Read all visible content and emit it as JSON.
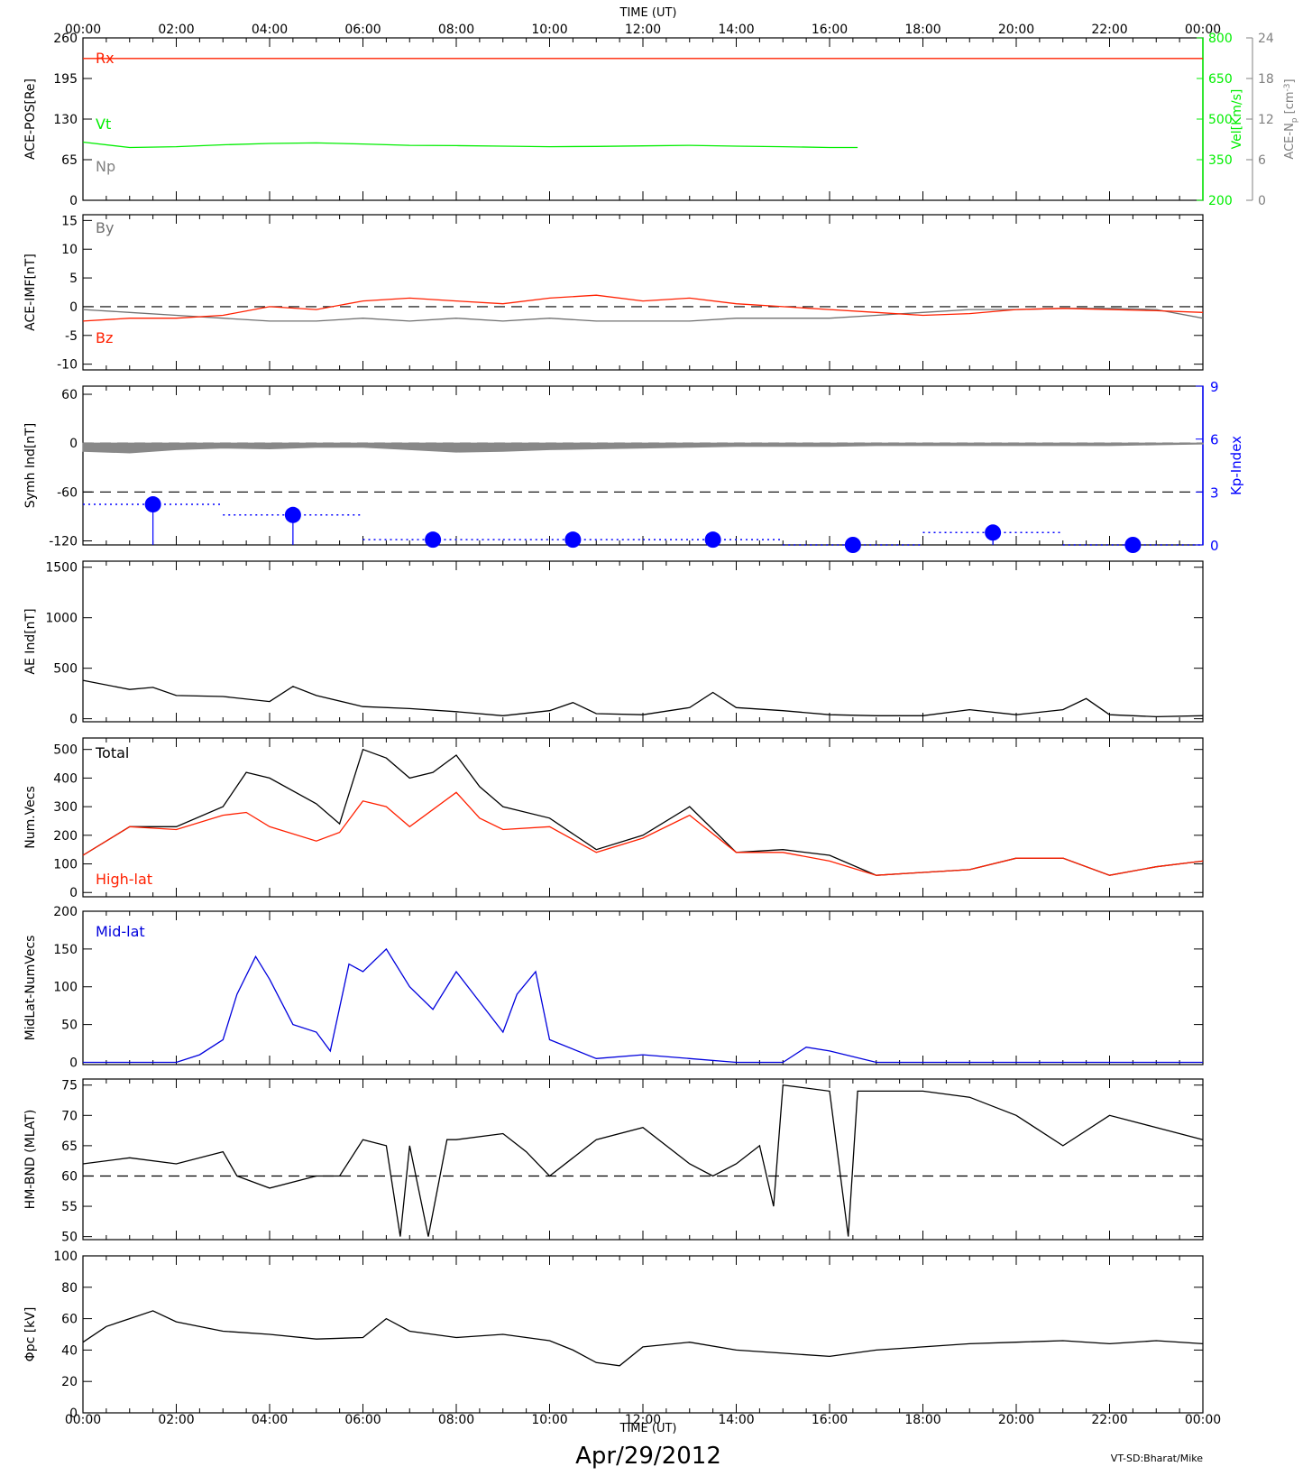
{
  "figure": {
    "top_axis_title": "TIME (UT)",
    "bottom_axis_title": "TIME (UT)",
    "date_label": "Apr/29/2012",
    "credit": "VT-SD:Bharat/Mike",
    "time_ticks": [
      "00:00",
      "02:00",
      "04:00",
      "06:00",
      "08:00",
      "10:00",
      "12:00",
      "14:00",
      "16:00",
      "18:00",
      "20:00",
      "22:00",
      "00:00"
    ]
  },
  "colors": {
    "axis": "#000000",
    "rx": "#ff2000",
    "vt": "#00ee00",
    "np": "#808080",
    "by": "#707070",
    "bz": "#ff2000",
    "symh_fill": "#888888",
    "kp": "#0000ff",
    "total": "#000000",
    "highlat": "#ff2000",
    "midlat": "#0000dd"
  },
  "chart_data": [
    {
      "type": "line",
      "ylabel": "ACE-POS[Re]",
      "ylim": [
        0,
        260
      ],
      "yticks": [
        0,
        65,
        130,
        195,
        260
      ],
      "right_axes": [
        {
          "label": "Vel[Km/s]",
          "ylim": [
            200,
            800
          ],
          "yticks": [
            200,
            350,
            500,
            650,
            800
          ],
          "color": "#00ee00"
        },
        {
          "label": "ACE-N",
          "label_sub": "p",
          "label_unit": "[cm",
          "label_unit_sup": "-3",
          "label_close": "]",
          "ylim": [
            0,
            24
          ],
          "yticks": [
            0,
            6,
            12,
            18,
            24
          ],
          "color": "#808080"
        }
      ],
      "series": [
        {
          "name": "Rx",
          "color": "#ff2000",
          "x": [
            0,
            24
          ],
          "y": [
            227,
            227
          ]
        },
        {
          "name": "Vt",
          "color": "#00ee00",
          "axis": "right",
          "x": [
            0,
            1,
            2,
            3,
            4,
            5,
            6,
            7,
            8,
            9,
            10,
            11,
            12,
            13,
            14,
            15,
            16,
            16.6
          ],
          "y": [
            415,
            395,
            398,
            405,
            410,
            412,
            408,
            403,
            402,
            400,
            398,
            399,
            401,
            403,
            400,
            398,
            395,
            395
          ]
        },
        {
          "name": "Np",
          "color": "#808080",
          "x": [],
          "y": []
        }
      ]
    },
    {
      "type": "line",
      "ylabel": "ACE-IMF[nT]",
      "ylim": [
        -11,
        16
      ],
      "yticks": [
        -10,
        -5,
        0,
        5,
        10,
        15
      ],
      "refline": 0,
      "series": [
        {
          "name": "By",
          "color": "#707070",
          "x": [
            0,
            1,
            2,
            3,
            4,
            5,
            6,
            7,
            8,
            9,
            10,
            11,
            12,
            13,
            14,
            15,
            16,
            17,
            18,
            19,
            20,
            21,
            22,
            23,
            24
          ],
          "y": [
            -0.5,
            -1,
            -1.5,
            -2,
            -2.5,
            -2.5,
            -2,
            -2.5,
            -2,
            -2.5,
            -2,
            -2.5,
            -2.5,
            -2.5,
            -2,
            -2,
            -2,
            -1.5,
            -1,
            -0.5,
            -0.5,
            -0.3,
            -0.3,
            -0.5,
            -2
          ]
        },
        {
          "name": "Bz",
          "color": "#ff2000",
          "x": [
            0,
            1,
            2,
            3,
            4,
            5,
            6,
            7,
            8,
            9,
            10,
            11,
            12,
            13,
            14,
            15,
            16,
            17,
            18,
            19,
            20,
            21,
            22,
            23,
            24
          ],
          "y": [
            -2.5,
            -2,
            -2,
            -1.5,
            0,
            -0.5,
            1,
            1.5,
            1,
            0.5,
            1.5,
            2,
            1,
            1.5,
            0.5,
            0,
            -0.5,
            -1,
            -1.5,
            -1.2,
            -0.5,
            -0.3,
            -0.5,
            -0.7,
            -1
          ]
        }
      ]
    },
    {
      "type": "area",
      "ylabel": "Symh Ind[nT]",
      "ylim": [
        -125,
        70
      ],
      "yticks": [
        -120,
        -60,
        0,
        60
      ],
      "reflines": [
        0,
        -60
      ],
      "right_axis": {
        "label": "Kp-Index",
        "ylim": [
          0,
          9
        ],
        "yticks": [
          0,
          3,
          6,
          9
        ],
        "color": "#0000ff"
      },
      "series": [
        {
          "name": "SYM-H",
          "color": "#888888",
          "x": [
            0,
            1,
            2,
            3,
            4,
            5,
            6,
            7,
            8,
            9,
            10,
            11,
            12,
            13,
            14,
            15,
            16,
            17,
            18,
            19,
            20,
            21,
            22,
            23,
            24
          ],
          "y": [
            -10,
            -12,
            -8,
            -6,
            -7,
            -5,
            -5,
            -8,
            -11,
            -10,
            -8,
            -7,
            -6,
            -5,
            -4,
            -4,
            -4,
            -3,
            -3,
            -3,
            -3,
            -3,
            -3,
            -2,
            -1
          ]
        },
        {
          "name": "Kp",
          "color": "#0000ff",
          "axis": "right",
          "x": [
            1.5,
            4.5,
            7.5,
            10.5,
            13.5,
            16.5,
            19.5,
            22.5
          ],
          "y": [
            2.3,
            1.7,
            0.3,
            0.3,
            0.3,
            0,
            0.7,
            0
          ]
        }
      ]
    },
    {
      "type": "line",
      "ylabel": "AE Ind[nT]",
      "ylim": [
        -30,
        1560
      ],
      "yticks": [
        0,
        500,
        1000,
        1500
      ],
      "series": [
        {
          "name": "AE",
          "color": "#000000",
          "x": [
            0,
            1,
            1.5,
            2,
            3,
            4,
            4.5,
            5,
            6,
            7,
            8,
            9,
            10,
            10.5,
            11,
            12,
            13,
            13.5,
            14,
            15,
            16,
            17,
            18,
            19,
            20,
            21,
            21.5,
            22,
            23,
            24
          ],
          "y": [
            380,
            290,
            310,
            230,
            220,
            170,
            320,
            230,
            120,
            100,
            70,
            30,
            80,
            160,
            50,
            40,
            110,
            260,
            110,
            80,
            40,
            30,
            30,
            90,
            40,
            90,
            200,
            40,
            20,
            30
          ]
        }
      ]
    },
    {
      "type": "line",
      "ylabel": "Num.Vecs",
      "ylim": [
        -15,
        540
      ],
      "yticks": [
        0,
        100,
        200,
        300,
        400,
        500
      ],
      "series": [
        {
          "name": "Total",
          "color": "#000000",
          "x": [
            0,
            1,
            2,
            3,
            3.5,
            4,
            5,
            5.5,
            6,
            6.5,
            7,
            7.5,
            8,
            8.5,
            9,
            10,
            11,
            12,
            13,
            14,
            15,
            16,
            17,
            18,
            19,
            20,
            21,
            22,
            23,
            24
          ],
          "y": [
            130,
            230,
            230,
            300,
            420,
            400,
            310,
            240,
            500,
            470,
            400,
            420,
            480,
            370,
            300,
            260,
            150,
            200,
            300,
            140,
            150,
            130,
            60,
            70,
            80,
            120,
            120,
            60,
            90,
            110
          ]
        },
        {
          "name": "High-lat",
          "color": "#ff2000",
          "x": [
            0,
            1,
            2,
            3,
            3.5,
            4,
            5,
            5.5,
            6,
            6.5,
            7,
            7.5,
            8,
            8.5,
            9,
            10,
            11,
            12,
            13,
            14,
            15,
            16,
            17,
            18,
            19,
            20,
            21,
            22,
            23,
            24
          ],
          "y": [
            130,
            230,
            220,
            270,
            280,
            230,
            180,
            210,
            320,
            300,
            230,
            290,
            350,
            260,
            220,
            230,
            140,
            190,
            270,
            140,
            140,
            110,
            60,
            70,
            80,
            120,
            120,
            60,
            90,
            110
          ]
        }
      ]
    },
    {
      "type": "line",
      "ylabel": "MidLat-NumVecs",
      "ylim": [
        -3,
        200
      ],
      "yticks": [
        0,
        50,
        100,
        150,
        200
      ],
      "series": [
        {
          "name": "Mid-lat",
          "color": "#0000dd",
          "x": [
            0,
            1,
            2,
            2.5,
            3,
            3.3,
            3.7,
            4,
            4.5,
            5,
            5.3,
            5.7,
            6,
            6.5,
            7,
            7.5,
            8,
            8.5,
            9,
            9.3,
            9.7,
            10,
            11,
            12,
            13,
            14,
            15,
            15.5,
            16,
            17,
            18,
            19,
            20,
            21,
            22,
            23,
            24
          ],
          "y": [
            0,
            0,
            0,
            10,
            30,
            90,
            140,
            110,
            50,
            40,
            15,
            130,
            120,
            150,
            100,
            70,
            120,
            80,
            40,
            90,
            120,
            30,
            5,
            10,
            5,
            0,
            0,
            20,
            15,
            0,
            0,
            0,
            0,
            0,
            0,
            0,
            0
          ]
        }
      ]
    },
    {
      "type": "line",
      "ylabel": "HM-BND (MLAT)",
      "ylim": [
        49.5,
        76
      ],
      "yticks": [
        50,
        55,
        60,
        65,
        70,
        75
      ],
      "refline": 60,
      "series": [
        {
          "name": "HM-BND",
          "color": "#000000",
          "x": [
            0,
            1,
            2,
            3,
            3.3,
            4,
            5,
            5.5,
            6,
            6.5,
            6.8,
            7,
            7.4,
            7.8,
            8,
            9,
            9.5,
            10,
            11,
            12,
            13,
            13.5,
            14,
            14.5,
            14.8,
            15,
            16,
            16.4,
            16.6,
            17,
            18,
            19,
            20,
            21,
            22,
            23,
            24
          ],
          "y": [
            62,
            63,
            62,
            64,
            60,
            58,
            60,
            60,
            66,
            65,
            50,
            65,
            50,
            66,
            66,
            67,
            64,
            60,
            66,
            68,
            62,
            60,
            62,
            65,
            55,
            75,
            74,
            50,
            74,
            74,
            74,
            73,
            70,
            65,
            70,
            68,
            66
          ]
        }
      ]
    },
    {
      "type": "line",
      "ylabel": "Φpc [kV]",
      "ylim": [
        0,
        100
      ],
      "yticks": [
        0,
        20,
        40,
        60,
        80,
        100
      ],
      "series": [
        {
          "name": "Phi_pc",
          "color": "#000000",
          "x": [
            0,
            0.5,
            1,
            1.5,
            2,
            3,
            4,
            5,
            6,
            6.5,
            7,
            8,
            9,
            10,
            10.5,
            11,
            11.5,
            12,
            13,
            14,
            15,
            16,
            17,
            18,
            19,
            20,
            21,
            22,
            23,
            24
          ],
          "y": [
            45,
            55,
            60,
            65,
            58,
            52,
            50,
            47,
            48,
            60,
            52,
            48,
            50,
            46,
            40,
            32,
            30,
            42,
            45,
            40,
            38,
            36,
            40,
            42,
            44,
            45,
            46,
            44,
            46,
            44
          ]
        }
      ]
    }
  ]
}
